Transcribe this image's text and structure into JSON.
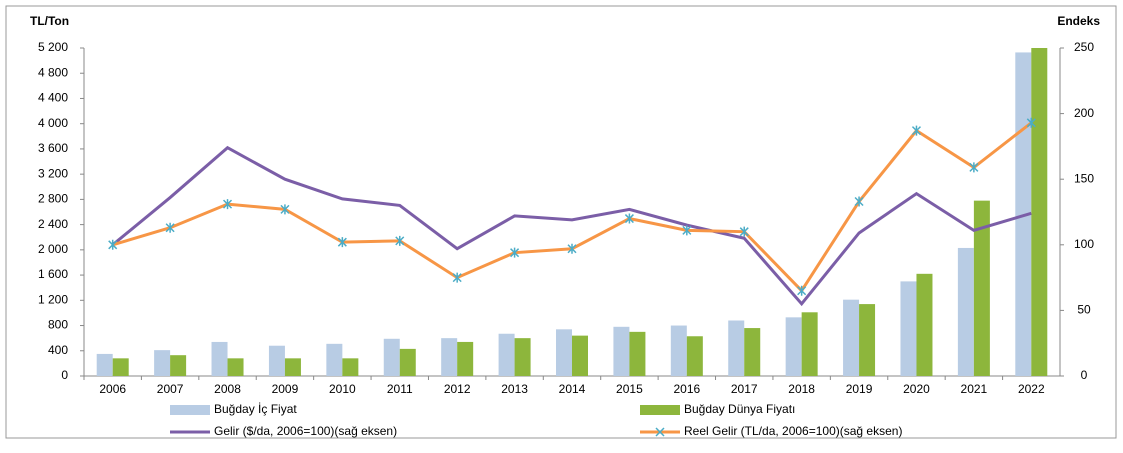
{
  "chart_data": {
    "type": "bar_line",
    "y_label": "TL/Ton",
    "y2_label": "Endeks",
    "categories": [
      "2006",
      "2007",
      "2008",
      "2009",
      "2010",
      "2011",
      "2012",
      "2013",
      "2014",
      "2015",
      "2016",
      "2017",
      "2018",
      "2019",
      "2020",
      "2021",
      "2022"
    ],
    "series": [
      {
        "name": "Buğday İç Fiyat",
        "type": "bar",
        "color": "#b8cce4",
        "values": [
          350,
          410,
          540,
          480,
          510,
          590,
          600,
          670,
          740,
          780,
          800,
          880,
          930,
          1210,
          1500,
          2030,
          5130
        ]
      },
      {
        "name": "Buğday Dünya Fiyatı",
        "type": "bar",
        "color": "#8db63c",
        "values": [
          280,
          330,
          280,
          280,
          280,
          430,
          540,
          600,
          640,
          700,
          630,
          760,
          1010,
          1140,
          1620,
          2780,
          5200
        ]
      },
      {
        "name": "Gelir ($/da, 2006=100)(sağ eksen)",
        "type": "line",
        "axis": "y2",
        "color": "#7b5ea7",
        "values": [
          100,
          136,
          174,
          150,
          135,
          130,
          97,
          122,
          119,
          127,
          115,
          105,
          55,
          109,
          139,
          111,
          124
        ]
      },
      {
        "name": "Reel Gelir (TL/da, 2006=100)(sağ eksen)",
        "type": "line",
        "axis": "y2",
        "color": "#f79646",
        "marker_color": "#4bacc6",
        "values": [
          100,
          113,
          131,
          127,
          102,
          103,
          75,
          94,
          97,
          120,
          111,
          110,
          65,
          133,
          187,
          159,
          193
        ]
      }
    ],
    "ylim": [
      0,
      5200
    ],
    "yticks": [
      0,
      400,
      800,
      {
        "value": 1200,
        "label": "1 200"
      },
      {
        "value": 1600,
        "label": "1 600"
      },
      {
        "value": 2000,
        "label": "2 000"
      },
      {
        "value": 2400,
        "label": "2 400"
      },
      {
        "value": 2800,
        "label": "2 800"
      },
      {
        "value": 3200,
        "label": "3 200"
      },
      {
        "value": 3600,
        "label": "3 600"
      },
      {
        "value": 4000,
        "label": "4 000"
      },
      {
        "value": 4400,
        "label": "4 400"
      },
      {
        "value": 4800,
        "label": "4 800"
      },
      {
        "value": 5200,
        "label": "5 200"
      }
    ],
    "y2lim": [
      0,
      250
    ],
    "y2ticks": [
      0,
      50,
      100,
      150,
      200,
      250
    ]
  }
}
